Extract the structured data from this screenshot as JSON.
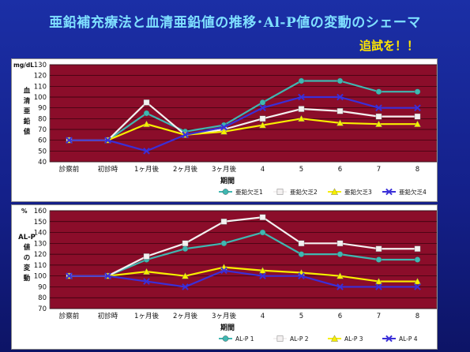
{
  "slide": {
    "title": "亜鉛補充療法と血清亜鉛値の推移･Al-P値の変動のシェーマ",
    "subtitle": "追試を！！"
  },
  "colors": {
    "plot_bg": "#8b0d2a",
    "series": [
      "#3fb7b1",
      "#f3f0f0",
      "#f7ef00",
      "#3a2fd8"
    ]
  },
  "chart_data": [
    {
      "type": "line",
      "unit_label": "mg/dL",
      "ylabel": "血清亜鉛値",
      "xlabel": "期間",
      "categories": [
        "診察前",
        "初診時",
        "1ヶ月後",
        "2ヶ月後",
        "3ヶ月後",
        "4",
        "5",
        "6",
        "7",
        "8"
      ],
      "ylim": [
        40,
        130
      ],
      "yticks": [
        40,
        50,
        60,
        70,
        80,
        90,
        100,
        110,
        120,
        130
      ],
      "grid": true,
      "legend": "bottom-right",
      "series": [
        {
          "name": "亜鉛欠乏1",
          "marker": "circle",
          "values": [
            60,
            60,
            85,
            68,
            74,
            95,
            115,
            115,
            105,
            105
          ]
        },
        {
          "name": "亜鉛欠乏2",
          "marker": "square",
          "values": [
            60,
            60,
            95,
            65,
            70,
            80,
            89,
            87,
            82,
            82
          ]
        },
        {
          "name": "亜鉛欠乏3",
          "marker": "triangle",
          "values": [
            60,
            60,
            75,
            65,
            68,
            74,
            80,
            76,
            75,
            75
          ]
        },
        {
          "name": "亜鉛欠乏4",
          "marker": "x",
          "values": [
            60,
            60,
            50,
            65,
            72,
            90,
            100,
            100,
            90,
            90
          ]
        }
      ]
    },
    {
      "type": "line",
      "unit_label": "%",
      "ylabel": "AL-P値の変動",
      "xlabel": "期間",
      "categories": [
        "診察前",
        "初診時",
        "1ヶ月後",
        "2ヶ月後",
        "3ヶ月後",
        "4",
        "5",
        "6",
        "7",
        "8"
      ],
      "ylim": [
        70,
        160
      ],
      "yticks": [
        70,
        80,
        90,
        100,
        110,
        120,
        130,
        140,
        150,
        160
      ],
      "grid": true,
      "legend": "bottom-right",
      "series": [
        {
          "name": "AL-P 1",
          "marker": "circle",
          "values": [
            100,
            100,
            115,
            125,
            130,
            140,
            120,
            120,
            115,
            115
          ]
        },
        {
          "name": "AL-P 2",
          "marker": "square",
          "values": [
            100,
            100,
            118,
            130,
            150,
            154,
            130,
            130,
            125,
            125
          ]
        },
        {
          "name": "AL-P 3",
          "marker": "triangle",
          "values": [
            100,
            100,
            104,
            100,
            108,
            105,
            103,
            100,
            95,
            95
          ]
        },
        {
          "name": "AL-P 4",
          "marker": "x",
          "values": [
            100,
            100,
            95,
            90,
            105,
            100,
            100,
            90,
            90,
            90
          ]
        }
      ]
    }
  ]
}
